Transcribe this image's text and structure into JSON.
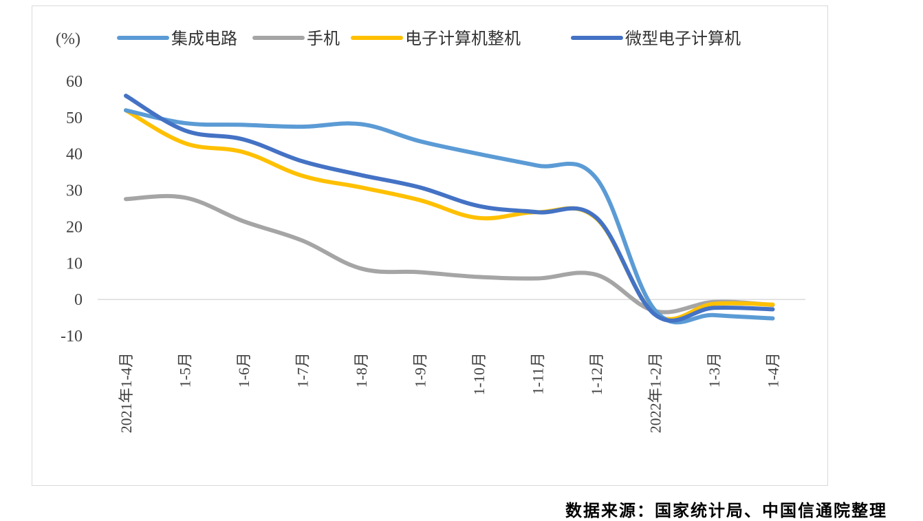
{
  "chart_data": {
    "type": "line",
    "title": "",
    "ylabel": "(%)",
    "xlabel": "",
    "ylim": [
      -10,
      60
    ],
    "yticks": [
      60,
      50,
      40,
      30,
      20,
      10,
      0,
      -10
    ],
    "grid": false,
    "legend_position": "top",
    "categories": [
      "2021年1-4月",
      "1-5月",
      "1-6月",
      "1-7月",
      "1-8月",
      "1-9月",
      "1-10月",
      "1-11月",
      "1-12月",
      "2022年1-2月",
      "1-3月",
      "1-4月"
    ],
    "series": [
      {
        "name": "集成电路",
        "color": "#5b9bd5",
        "values": [
          52,
          48.5,
          48,
          47.5,
          48.2,
          43.5,
          40,
          36.8,
          33.3,
          -3,
          -4.3,
          -5.2
        ]
      },
      {
        "name": "手机",
        "color": "#a5a5a5",
        "values": [
          27.6,
          28,
          21.5,
          16.2,
          8.5,
          7.5,
          6.2,
          5.8,
          6.8,
          -3.2,
          -0.7,
          -1.5
        ]
      },
      {
        "name": "电子计算机整机",
        "color": "#ffc000",
        "values": [
          52,
          43,
          40.5,
          34,
          30.8,
          27.3,
          22.4,
          24,
          22.3,
          -4,
          -1.2,
          -1.4
        ]
      },
      {
        "name": "微型电子计算机",
        "color": "#4472c4",
        "values": [
          56,
          46.5,
          44,
          38,
          34.2,
          30.8,
          25.7,
          24,
          22.5,
          -4.2,
          -2.3,
          -2.7
        ]
      }
    ]
  },
  "source_note": "数据来源：国家统计局、中国信通院整理"
}
